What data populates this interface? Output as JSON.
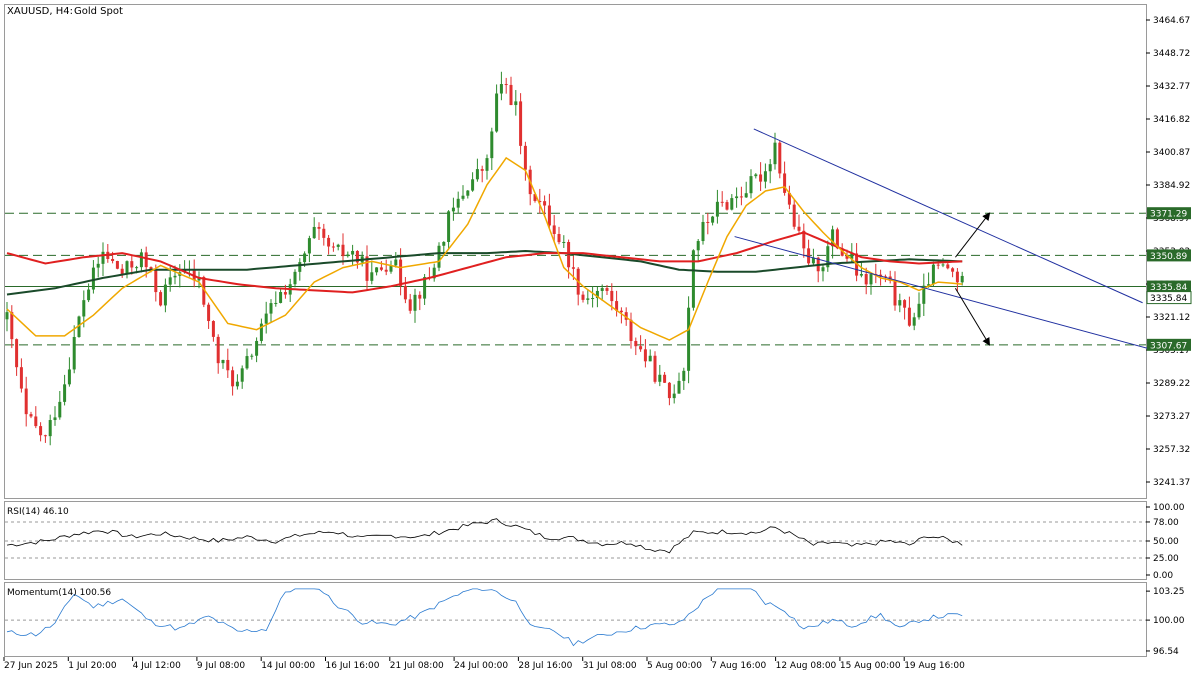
{
  "header": {
    "symbol": "XAUUSD, H4:",
    "description": "Gold Spot"
  },
  "colors": {
    "bull": "#2e8b2e",
    "bear": "#e03030",
    "ma_fast": "#f0a800",
    "ma_mid": "#e02020",
    "ma_slow": "#1a4a2a",
    "channel": "#2030a0",
    "level": "#2a6a2a",
    "rsi": "#000000",
    "momentum": "#2a7ad0",
    "grid": "#9a9a9a"
  },
  "chart_data": [
    {
      "type": "candlestick",
      "name": "XAUUSD H4",
      "y_ticks": [
        "3464.67",
        "3448.72",
        "3432.77",
        "3416.82",
        "3400.87",
        "3384.92",
        "3368.97",
        "3353.02",
        "3337.07",
        "3321.12",
        "3305.17",
        "3289.22",
        "3273.27",
        "3257.32",
        "3241.37"
      ],
      "ylim": [
        3225.42,
        3470
      ],
      "x_ticks": [
        "27 Jun 2025",
        "1 Jul 20:00",
        "4 Jul 12:00",
        "9 Jul 08:00",
        "14 Jul 00:00",
        "16 Jul 16:00",
        "21 Jul 08:00",
        "24 Jul 00:00",
        "28 Jul 16:00",
        "31 Jul 08:00",
        "5 Aug 00:00",
        "7 Aug 16:00",
        "12 Aug 08:00",
        "15 Aug 00:00",
        "19 Aug 16:00"
      ],
      "bars_count": 176,
      "close_path": [
        [
          0,
          3320
        ],
        [
          4,
          3272
        ],
        [
          8,
          3262
        ],
        [
          12,
          3290
        ],
        [
          16,
          3330
        ],
        [
          20,
          3352
        ],
        [
          24,
          3342
        ],
        [
          28,
          3350
        ],
        [
          32,
          3330
        ],
        [
          36,
          3345
        ],
        [
          40,
          3338
        ],
        [
          44,
          3300
        ],
        [
          48,
          3288
        ],
        [
          52,
          3310
        ],
        [
          56,
          3330
        ],
        [
          60,
          3340
        ],
        [
          64,
          3362
        ],
        [
          68,
          3352
        ],
        [
          72,
          3352
        ],
        [
          76,
          3340
        ],
        [
          80,
          3350
        ],
        [
          84,
          3328
        ],
        [
          88,
          3340
        ],
        [
          92,
          3368
        ],
        [
          96,
          3385
        ],
        [
          100,
          3395
        ],
        [
          102,
          3428
        ],
        [
          104,
          3433
        ],
        [
          106,
          3422
        ],
        [
          108,
          3388
        ],
        [
          112,
          3372
        ],
        [
          116,
          3355
        ],
        [
          120,
          3330
        ],
        [
          124,
          3335
        ],
        [
          128,
          3322
        ],
        [
          130,
          3312
        ],
        [
          134,
          3298
        ],
        [
          138,
          3282
        ],
        [
          141,
          3298
        ],
        [
          143,
          3355
        ],
        [
          147,
          3372
        ],
        [
          151,
          3378
        ],
        [
          155,
          3385
        ],
        [
          158,
          3392
        ],
        [
          160,
          3405
        ],
        [
          162,
          3382
        ],
        [
          164,
          3366
        ],
        [
          166,
          3352
        ],
        [
          168,
          3346
        ],
        [
          170,
          3348
        ],
        [
          172,
          3360
        ],
        [
          174,
          3352
        ],
        [
          176,
          3348
        ],
        [
          178,
          3338
        ],
        [
          180,
          3340
        ],
        [
          182,
          3340
        ],
        [
          184,
          3335
        ],
        [
          186,
          3325
        ],
        [
          188,
          3320
        ],
        [
          190,
          3325
        ],
        [
          192,
          3340
        ],
        [
          194,
          3345
        ],
        [
          196,
          3344
        ],
        [
          198,
          3340
        ],
        [
          199,
          3337
        ]
      ],
      "ma_fast_path": [
        [
          0,
          3325
        ],
        [
          6,
          3312
        ],
        [
          12,
          3312
        ],
        [
          18,
          3322
        ],
        [
          24,
          3335
        ],
        [
          32,
          3346
        ],
        [
          40,
          3338
        ],
        [
          46,
          3318
        ],
        [
          52,
          3315
        ],
        [
          58,
          3322
        ],
        [
          64,
          3338
        ],
        [
          70,
          3345
        ],
        [
          76,
          3348
        ],
        [
          82,
          3345
        ],
        [
          90,
          3348
        ],
        [
          96,
          3366
        ],
        [
          100,
          3385
        ],
        [
          104,
          3398
        ],
        [
          108,
          3392
        ],
        [
          112,
          3370
        ],
        [
          116,
          3345
        ],
        [
          120,
          3336
        ],
        [
          126,
          3326
        ],
        [
          132,
          3316
        ],
        [
          138,
          3310
        ],
        [
          142,
          3315
        ],
        [
          146,
          3338
        ],
        [
          150,
          3360
        ],
        [
          154,
          3375
        ],
        [
          158,
          3382
        ],
        [
          162,
          3384
        ],
        [
          166,
          3372
        ],
        [
          170,
          3362
        ],
        [
          174,
          3353
        ],
        [
          178,
          3345
        ],
        [
          182,
          3340
        ],
        [
          186,
          3338
        ],
        [
          190,
          3334
        ],
        [
          194,
          3338
        ],
        [
          199,
          3337
        ]
      ],
      "ma_mid_path": [
        [
          0,
          3352
        ],
        [
          8,
          3347
        ],
        [
          16,
          3350
        ],
        [
          24,
          3352
        ],
        [
          32,
          3348
        ],
        [
          40,
          3340
        ],
        [
          48,
          3337
        ],
        [
          56,
          3335
        ],
        [
          64,
          3334
        ],
        [
          72,
          3333
        ],
        [
          80,
          3336
        ],
        [
          88,
          3340
        ],
        [
          96,
          3345
        ],
        [
          104,
          3350
        ],
        [
          112,
          3352
        ],
        [
          120,
          3352
        ],
        [
          128,
          3350
        ],
        [
          136,
          3348
        ],
        [
          144,
          3348
        ],
        [
          152,
          3352
        ],
        [
          160,
          3358
        ],
        [
          166,
          3362
        ],
        [
          172,
          3356
        ],
        [
          178,
          3350
        ],
        [
          184,
          3348
        ],
        [
          190,
          3347
        ],
        [
          199,
          3348
        ]
      ],
      "ma_slow_path": [
        [
          0,
          3332
        ],
        [
          10,
          3335
        ],
        [
          20,
          3340
        ],
        [
          30,
          3344
        ],
        [
          40,
          3344
        ],
        [
          50,
          3344
        ],
        [
          60,
          3346
        ],
        [
          70,
          3348
        ],
        [
          80,
          3350
        ],
        [
          90,
          3352
        ],
        [
          100,
          3352
        ],
        [
          108,
          3353
        ],
        [
          116,
          3352
        ],
        [
          124,
          3350
        ],
        [
          132,
          3348
        ],
        [
          140,
          3344
        ],
        [
          148,
          3343
        ],
        [
          156,
          3343
        ],
        [
          164,
          3345
        ],
        [
          172,
          3347
        ],
        [
          180,
          3348
        ],
        [
          188,
          3349
        ],
        [
          199,
          3348
        ]
      ],
      "channel_upper": [
        [
          156,
          3412
        ],
        [
          237,
          3328
        ]
      ],
      "channel_lower": [
        [
          152,
          3360
        ],
        [
          238,
          3306
        ]
      ],
      "levels": [
        {
          "value": "3371.29",
          "price": 3371.29,
          "style": "dashed"
        },
        {
          "value": "3350.89",
          "price": 3350.89,
          "style": "dashed"
        },
        {
          "value": "3335.84",
          "price": 3335.84,
          "style": "solid"
        },
        {
          "value": "3307.67",
          "price": 3307.67,
          "style": "dashed"
        }
      ],
      "price_label_extra": "3335.84",
      "arrows": [
        {
          "from": [
            198,
            3350
          ],
          "to": [
            205,
            3371
          ]
        },
        {
          "from": [
            198,
            3335
          ],
          "to": [
            205,
            3308
          ]
        }
      ]
    },
    {
      "type": "line",
      "name": "RSI",
      "label": "RSI(14) 46.10",
      "y_ticks": [
        "100.00",
        "78.00",
        "50.00",
        "25.00",
        "0.00"
      ],
      "levels": [
        78,
        50,
        25
      ],
      "ylim": [
        0,
        100
      ],
      "path": [
        [
          0,
          44
        ],
        [
          8,
          50
        ],
        [
          14,
          60
        ],
        [
          20,
          66
        ],
        [
          26,
          56
        ],
        [
          32,
          61
        ],
        [
          38,
          55
        ],
        [
          44,
          50
        ],
        [
          50,
          56
        ],
        [
          56,
          50
        ],
        [
          62,
          60
        ],
        [
          68,
          64
        ],
        [
          74,
          54
        ],
        [
          80,
          58
        ],
        [
          86,
          56
        ],
        [
          92,
          66
        ],
        [
          98,
          76
        ],
        [
          102,
          80
        ],
        [
          106,
          72
        ],
        [
          112,
          56
        ],
        [
          118,
          54
        ],
        [
          124,
          46
        ],
        [
          130,
          48
        ],
        [
          134,
          38
        ],
        [
          138,
          36
        ],
        [
          143,
          62
        ],
        [
          150,
          64
        ],
        [
          156,
          62
        ],
        [
          160,
          70
        ],
        [
          164,
          58
        ],
        [
          168,
          44
        ],
        [
          172,
          48
        ],
        [
          176,
          42
        ],
        [
          180,
          46
        ],
        [
          184,
          50
        ],
        [
          188,
          44
        ],
        [
          192,
          58
        ],
        [
          196,
          52
        ],
        [
          199,
          46
        ]
      ]
    },
    {
      "type": "line",
      "name": "Momentum",
      "label": "Momentum(14) 100.56",
      "y_ticks": [
        "103.25",
        "100.00",
        "96.54"
      ],
      "ylim": [
        96.2,
        103.6
      ],
      "path": [
        [
          0,
          98.6
        ],
        [
          6,
          98.4
        ],
        [
          10,
          99.6
        ],
        [
          14,
          103.0
        ],
        [
          18,
          101.5
        ],
        [
          24,
          102.4
        ],
        [
          30,
          99.8
        ],
        [
          36,
          99.0
        ],
        [
          42,
          100.4
        ],
        [
          48,
          98.7
        ],
        [
          54,
          99.0
        ],
        [
          58,
          103.2
        ],
        [
          64,
          104.2
        ],
        [
          68,
          102.0
        ],
        [
          74,
          99.8
        ],
        [
          80,
          99.5
        ],
        [
          86,
          100.6
        ],
        [
          92,
          102.4
        ],
        [
          98,
          103.7
        ],
        [
          102,
          103.2
        ],
        [
          106,
          102.0
        ],
        [
          110,
          99.0
        ],
        [
          114,
          98.8
        ],
        [
          118,
          97.4
        ],
        [
          122,
          98.0
        ],
        [
          128,
          98.8
        ],
        [
          134,
          99.4
        ],
        [
          140,
          99.6
        ],
        [
          144,
          101.6
        ],
        [
          148,
          103.6
        ],
        [
          154,
          104.2
        ],
        [
          158,
          102.0
        ],
        [
          162,
          101.2
        ],
        [
          166,
          99.0
        ],
        [
          172,
          100.0
        ],
        [
          176,
          99.4
        ],
        [
          182,
          100.6
        ],
        [
          186,
          99.0
        ],
        [
          190,
          100.0
        ],
        [
          194,
          100.4
        ],
        [
          199,
          100.6
        ]
      ]
    }
  ]
}
